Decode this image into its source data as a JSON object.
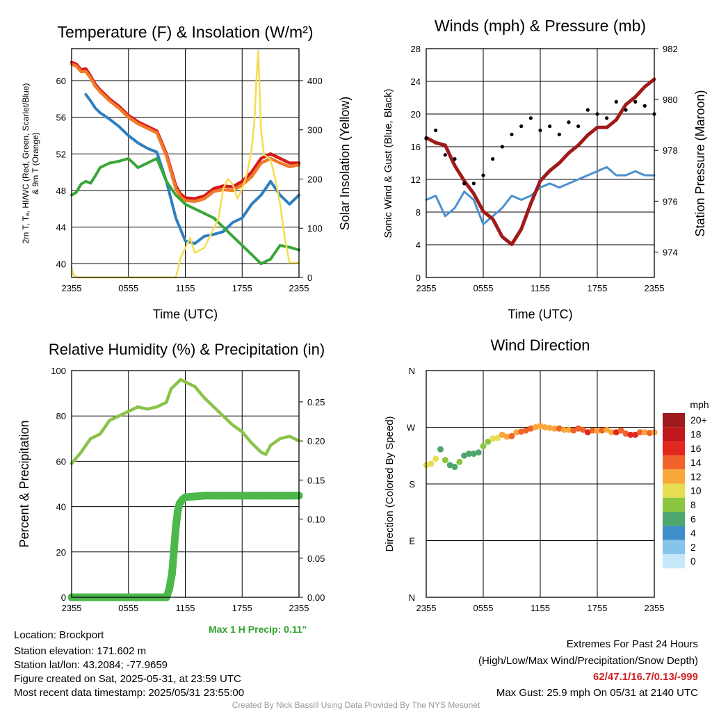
{
  "chart_data": [
    {
      "type": "line",
      "title": "Temperature (F) & Insolation (W/m²)",
      "xlabel": "Time (UTC)",
      "ylabel_lines": [
        "2m T, Tₐ, HI/WC (Red, Green, Scarlet/Blue)",
        "& 9m T (Orange)"
      ],
      "y2label": "Solar Insolation (Yellow)",
      "xticks": [
        "2355",
        "0555",
        "1155",
        "1755",
        "2355"
      ],
      "yticks": [
        40,
        44,
        48,
        52,
        56,
        60
      ],
      "y2ticks": [
        0,
        100,
        200,
        300,
        400
      ],
      "ylim": [
        38.5,
        63.5
      ],
      "y2lim": [
        0,
        465
      ],
      "grid": true,
      "series": [
        {
          "color": "#d7191c",
          "axis": "left",
          "x": [
            0,
            0.5,
            1,
            1.5,
            2,
            2.5,
            3,
            3.5,
            4,
            5,
            6,
            7,
            8,
            9,
            10,
            11,
            11.5,
            12,
            13,
            14,
            15,
            16,
            17,
            18,
            19,
            20,
            21,
            22,
            23,
            24
          ],
          "y": [
            62.0,
            61.8,
            61.2,
            61.3,
            60.5,
            59.6,
            59.0,
            58.5,
            58.0,
            57.2,
            56.2,
            55.5,
            55.0,
            54.5,
            52.0,
            48.5,
            47.6,
            47.2,
            47.1,
            47.4,
            48.2,
            48.5,
            48.4,
            49.0,
            50.0,
            51.5,
            52.0,
            51.5,
            51.0,
            51.0
          ]
        },
        {
          "color": "#f07b2b",
          "axis": "left",
          "x": [
            0,
            0.5,
            1,
            1.5,
            2,
            2.5,
            3,
            3.5,
            4,
            5,
            6,
            7,
            8,
            9,
            10,
            11,
            11.5,
            12,
            13,
            14,
            15,
            16,
            17,
            18,
            19,
            20,
            21,
            22,
            23,
            24
          ],
          "y": [
            61.8,
            61.6,
            61.0,
            61.0,
            60.3,
            59.4,
            58.8,
            58.3,
            57.8,
            57.0,
            56.0,
            55.3,
            54.8,
            54.3,
            51.8,
            48.2,
            47.3,
            46.9,
            46.8,
            47.1,
            47.9,
            48.1,
            48.0,
            48.6,
            49.5,
            51.0,
            51.5,
            51.0,
            50.6,
            50.8
          ]
        },
        {
          "color": "#2e7fc0",
          "axis": "left",
          "x": [
            1.5,
            2,
            2.5,
            3,
            4,
            5,
            6,
            7,
            8,
            9,
            10,
            11,
            12,
            13,
            14,
            15,
            16,
            17,
            18,
            19,
            20,
            21,
            22,
            23,
            24
          ],
          "y": [
            58.5,
            57.8,
            57.0,
            56.5,
            55.8,
            55.0,
            54.0,
            53.2,
            52.6,
            52.2,
            49.0,
            45.0,
            42.5,
            42.2,
            43.0,
            43.2,
            43.5,
            44.5,
            45.0,
            46.5,
            47.5,
            49.0,
            47.5,
            46.5,
            47.5
          ]
        },
        {
          "color": "#3aa63a",
          "axis": "left",
          "x": [
            0,
            0.5,
            1,
            1.5,
            2,
            2.5,
            3,
            4,
            5,
            6,
            7,
            8,
            9,
            10,
            11,
            12,
            13,
            14,
            15,
            16,
            17,
            18,
            19,
            20,
            21,
            22,
            23,
            24
          ],
          "y": [
            47.5,
            47.8,
            48.7,
            49.0,
            48.8,
            49.6,
            50.5,
            51.0,
            51.2,
            51.5,
            50.5,
            51.0,
            51.5,
            49.0,
            47.5,
            46.5,
            46.0,
            45.5,
            45.0,
            44.0,
            43.0,
            42.0,
            41.0,
            40.0,
            40.5,
            42.0,
            41.8,
            41.5
          ]
        },
        {
          "color": "#f5dc50",
          "axis": "right",
          "x": [
            0,
            0.2,
            0.6,
            1,
            4,
            8,
            11,
            11.2,
            11.5,
            12,
            12.5,
            13,
            14,
            15,
            15.5,
            16,
            16.5,
            17,
            17.5,
            18,
            18.5,
            19,
            19.3,
            19.5,
            19.7,
            20,
            20.3,
            21,
            21.5,
            22,
            22.5,
            23,
            24
          ],
          "y": [
            20,
            5,
            0,
            0,
            0,
            0,
            0,
            15,
            40,
            60,
            80,
            50,
            60,
            100,
            120,
            180,
            200,
            190,
            160,
            180,
            210,
            260,
            320,
            400,
            460,
            300,
            250,
            240,
            200,
            150,
            80,
            30,
            30
          ]
        }
      ]
    },
    {
      "type": "line",
      "title": "Winds (mph) & Pressure (mb)",
      "xlabel": "Time (UTC)",
      "ylabel": "Sonic Wind & Gust (Blue, Black)",
      "y2label": "Station Pressure (Maroon)",
      "xticks": [
        "2355",
        "0555",
        "1155",
        "1755",
        "2355"
      ],
      "yticks": [
        0,
        4,
        8,
        12,
        16,
        20,
        24,
        28
      ],
      "y2ticks": [
        974,
        976,
        978,
        980,
        982
      ],
      "ylim": [
        0,
        28
      ],
      "y2lim": [
        973,
        982
      ],
      "grid": true,
      "series": [
        {
          "color": "#4a90d0",
          "axis": "left",
          "x": [
            0,
            1,
            2,
            3,
            4,
            5,
            6,
            7,
            8,
            9,
            10,
            11,
            12,
            13,
            14,
            15,
            16,
            17,
            18,
            19,
            20,
            21,
            22,
            23,
            24
          ],
          "y": [
            9.5,
            10.0,
            7.5,
            8.5,
            10.5,
            9.5,
            6.5,
            7.5,
            8.5,
            10.0,
            9.5,
            10.0,
            11.0,
            11.5,
            11.0,
            11.5,
            12.0,
            12.5,
            13.0,
            13.5,
            12.5,
            12.5,
            13.0,
            12.5,
            12.5
          ]
        },
        {
          "color": "#a11a1a",
          "axis": "right",
          "x": [
            0,
            1,
            2,
            3,
            4,
            5,
            6,
            7,
            8,
            9,
            10,
            11,
            12,
            13,
            14,
            15,
            16,
            17,
            18,
            19,
            20,
            21,
            22,
            23,
            24
          ],
          "y": [
            978.5,
            978.3,
            978.2,
            977.4,
            976.8,
            976.3,
            975.6,
            975.3,
            974.6,
            974.3,
            974.9,
            975.9,
            976.8,
            977.2,
            977.5,
            977.9,
            978.2,
            978.6,
            978.9,
            978.9,
            979.2,
            979.8,
            980.1,
            980.5,
            980.8
          ]
        },
        {
          "color": "#000000",
          "axis": "left",
          "x": [
            0,
            1,
            2,
            3,
            4,
            5,
            6,
            7,
            8,
            9,
            10,
            11,
            12,
            13,
            14,
            15,
            16,
            17,
            18,
            19,
            20,
            21,
            22,
            23,
            24
          ],
          "y": [
            17.0,
            18.0,
            15.0,
            14.5,
            11.5,
            11.5,
            12.5,
            14.5,
            16.0,
            17.5,
            18.5,
            19.5,
            18.0,
            18.5,
            17.5,
            19.0,
            18.5,
            20.5,
            20.0,
            19.5,
            21.5,
            20.5,
            21.5,
            21.0,
            20.0
          ]
        }
      ]
    },
    {
      "type": "scatter",
      "title": "Relative Humidity (%) & Precipitation (in)",
      "ylabel": "Percent & Precipitation",
      "xticks": [
        "2355",
        "0555",
        "1155",
        "1755",
        "2355"
      ],
      "yticks": [
        0,
        20,
        40,
        60,
        80,
        100
      ],
      "y2ticks": [
        "0.00",
        "0.05",
        "0.10",
        "0.15",
        "0.20",
        "0.25"
      ],
      "ylim": [
        0,
        100
      ],
      "y2lim": [
        0,
        0.29
      ],
      "grid": true,
      "series": [
        {
          "color": "#8bc34a",
          "axis": "left",
          "x": [
            0,
            1,
            1.5,
            2,
            3,
            4,
            5,
            6,
            7,
            8,
            9,
            10,
            10.5,
            11,
            11.5,
            12,
            13,
            14,
            15,
            16,
            17,
            18,
            19,
            20,
            20.5,
            21,
            22,
            23,
            24
          ],
          "y": [
            59,
            64,
            67,
            70,
            72,
            78,
            80,
            82,
            84,
            83,
            84,
            86,
            92,
            94,
            96,
            95,
            93,
            88,
            84,
            80,
            76,
            73,
            68,
            64,
            63,
            67,
            70,
            71,
            69
          ]
        },
        {
          "color": "#4cb84c",
          "axis": "right",
          "x": [
            0,
            2,
            4,
            6,
            8,
            10,
            10.3,
            10.6,
            10.8,
            11,
            11.2,
            11.4,
            11.7,
            12,
            13,
            14,
            16,
            18,
            20,
            22,
            24
          ],
          "y": [
            0,
            0,
            0,
            0,
            0,
            0,
            0.01,
            0.03,
            0.06,
            0.09,
            0.11,
            0.12,
            0.125,
            0.128,
            0.129,
            0.13,
            0.13,
            0.13,
            0.13,
            0.13,
            0.13
          ]
        }
      ]
    },
    {
      "type": "scatter",
      "title": "Wind Direction",
      "ylabel": "Direction (Colored By Speed)",
      "xticks": [
        "2355",
        "0555",
        "1155",
        "1755",
        "2355"
      ],
      "yticks": [
        "N",
        "E",
        "S",
        "W",
        "N"
      ],
      "legend_title": "mph",
      "legend_labels": [
        "0",
        "2",
        "4",
        "6",
        "8",
        "10",
        "12",
        "14",
        "16",
        "18",
        "20+"
      ],
      "legend_colors": [
        "#c6e9fa",
        "#86c5ea",
        "#3d8ec9",
        "#4ca66d",
        "#8cc540",
        "#e7dd50",
        "#f9a63b",
        "#f0632a",
        "#e0281f",
        "#c0181c",
        "#9e1b1e"
      ],
      "series": [
        {
          "axis": "left",
          "x": [
            0,
            0.5,
            1,
            1.5,
            2,
            2.5,
            3,
            3.5,
            4,
            4.5,
            5,
            5.5,
            6,
            6.5,
            7,
            7.5,
            8,
            8.5,
            9,
            9.5,
            10,
            10.5,
            11,
            11.5,
            12,
            12.5,
            13,
            13.5,
            14,
            14.5,
            15,
            15.5,
            16,
            16.5,
            17,
            17.5,
            18,
            18.5,
            19,
            19.5,
            20,
            20.5,
            21,
            21.5,
            22,
            22.5,
            23,
            23.5,
            24
          ],
          "y": [
            210,
            212,
            220,
            235,
            218,
            210,
            207,
            215,
            225,
            228,
            228,
            230,
            240,
            247,
            252,
            253,
            258,
            255,
            256,
            262,
            263,
            265,
            268,
            270,
            272,
            270,
            269,
            268,
            268,
            266,
            266,
            265,
            268,
            266,
            262,
            265,
            264,
            265,
            266,
            262,
            262,
            265,
            260,
            258,
            258,
            262,
            262,
            261,
            262
          ],
          "speeds": [
            10,
            10,
            10,
            6,
            8,
            6,
            6,
            8,
            6,
            6,
            6,
            6,
            8,
            8,
            10,
            10,
            12,
            12,
            14,
            12,
            14,
            14,
            14,
            12,
            12,
            12,
            12,
            12,
            14,
            12,
            12,
            14,
            14,
            14,
            16,
            14,
            12,
            14,
            12,
            12,
            16,
            14,
            14,
            16,
            16,
            14,
            12,
            14,
            12
          ]
        }
      ]
    }
  ],
  "precip_note": "Max 1 H Precip: 0.11\"",
  "station": {
    "location": "Location: Brockport",
    "elevation": "Station elevation: 171.602 m",
    "latlon": "Station lat/lon: 43.2084; -77.9659",
    "created": "Figure created on Sat, 2025-05-31, at 23:59 UTC",
    "recent": "Most recent data timestamp: 2025/05/31 23:55:00"
  },
  "extremes": {
    "title": "Extremes For Past 24 Hours",
    "subtitle": "(High/Low/Max Wind/Precipitation/Snow Depth)",
    "values": "62/47.1/16.7/0.13/-999",
    "gust": "Max Gust: 25.9 mph On 05/31 at 2140 UTC"
  },
  "credit": "Created By Nick Bassill Using Data Provided By The NYS Mesonet"
}
